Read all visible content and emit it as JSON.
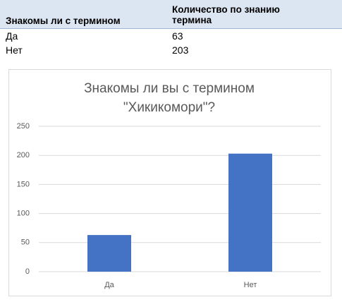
{
  "table": {
    "headers": [
      "Знакомы ли с термином",
      "Количество по знанию термина"
    ],
    "rows": [
      [
        "Да",
        63
      ],
      [
        "Нет",
        203
      ]
    ]
  },
  "chart_data": {
    "type": "bar",
    "title": "Знакомы ли вы с термином \"Хикикомори\"?",
    "categories": [
      "Да",
      "Нет"
    ],
    "values": [
      63,
      203
    ],
    "color": "#4472c4",
    "ylim": [
      0,
      250
    ],
    "yticks": [
      0,
      50,
      100,
      150,
      200,
      250
    ],
    "grid": true
  }
}
